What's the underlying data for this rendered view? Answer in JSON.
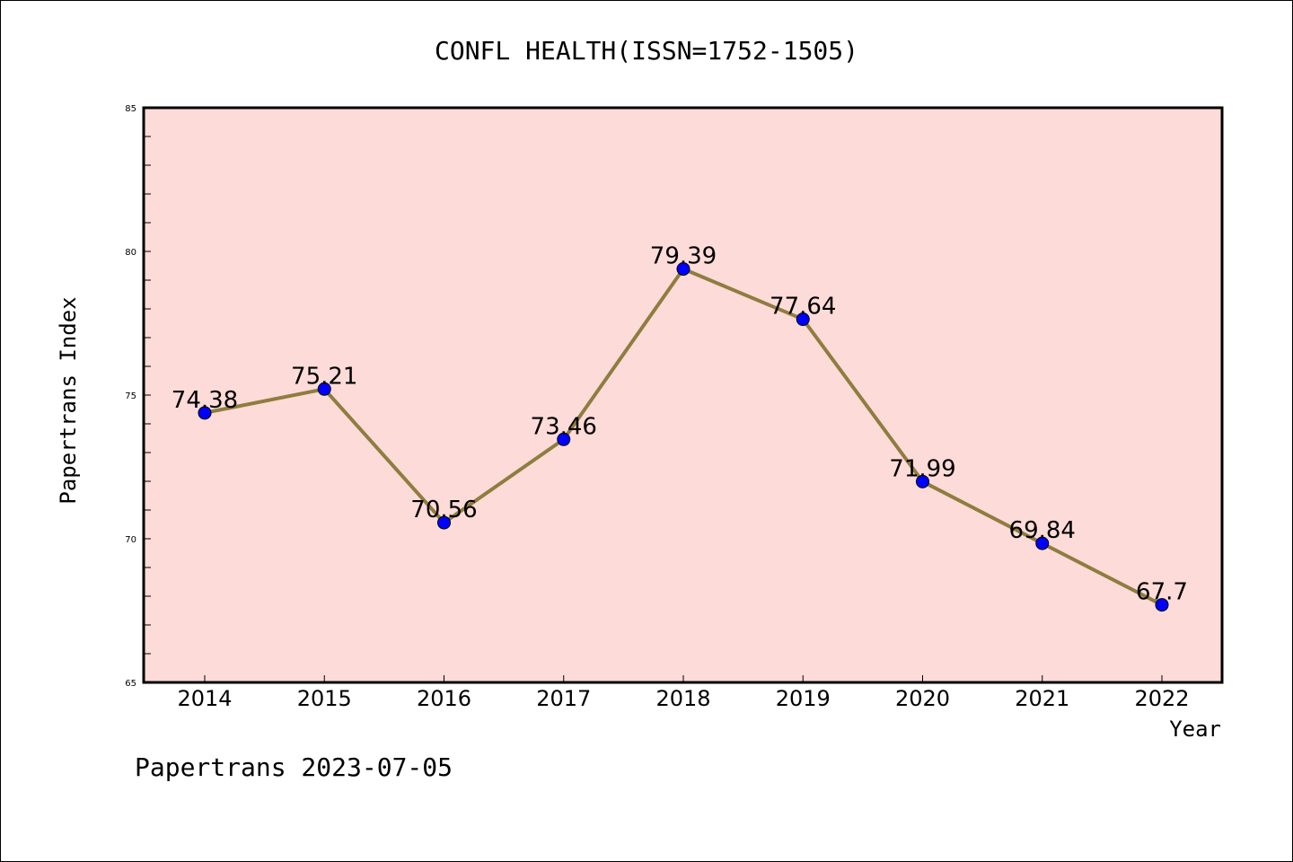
{
  "chart_data": {
    "type": "line",
    "title": "CONFL HEALTH(ISSN=1752-1505)",
    "xlabel": "Year",
    "ylabel": "Papertrans Index",
    "categories": [
      "2014",
      "2015",
      "2016",
      "2017",
      "2018",
      "2019",
      "2020",
      "2021",
      "2022"
    ],
    "series": [
      {
        "values": [
          74.38,
          75.21,
          70.56,
          73.46,
          79.39,
          77.64,
          71.99,
          69.84,
          67.7
        ],
        "labels": [
          "74.38",
          "75.21",
          "70.56",
          "73.46",
          "79.39",
          "77.64",
          "71.99",
          "69.84",
          "67.7"
        ]
      }
    ],
    "ylim": [
      65,
      85
    ],
    "yticks": [
      "65",
      "70",
      "75",
      "80",
      "85"
    ],
    "grid": false,
    "colors": {
      "plot_background": "#fddbd8",
      "line": "#8e7d3f",
      "marker": "#0000ff"
    },
    "footer": "Papertrans 2023-07-05"
  }
}
